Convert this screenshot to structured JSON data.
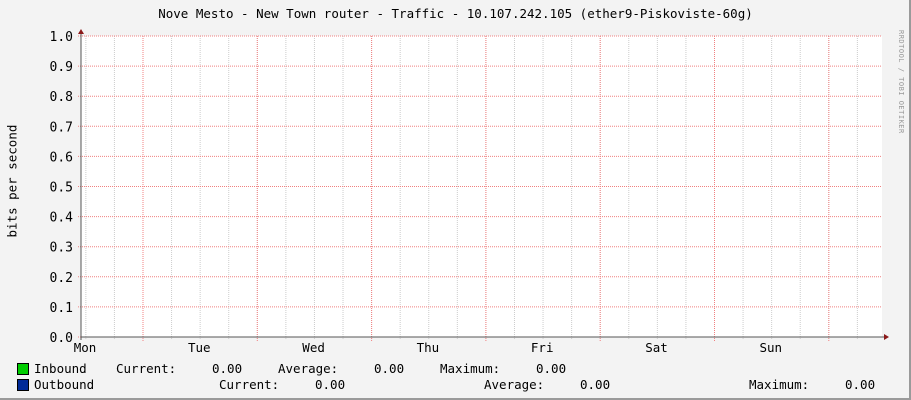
{
  "chart_data": {
    "type": "line",
    "title": "Nove Mesto - New Town router - Traffic - 10.107.242.105 (ether9-Piskoviste-60g)",
    "ylabel": "bits per second",
    "xlabel": "",
    "ylim": [
      0,
      1.0
    ],
    "yticks": [
      "0.0",
      "0.1",
      "0.2",
      "0.3",
      "0.4",
      "0.5",
      "0.6",
      "0.7",
      "0.8",
      "0.9",
      "1.0"
    ],
    "xticks": [
      "Mon",
      "Tue",
      "Wed",
      "Thu",
      "Fri",
      "Sat",
      "Sun"
    ],
    "grid": true,
    "series": [
      {
        "name": "Inbound",
        "color": "#00cc00",
        "values": [],
        "current": "0.00",
        "average": "0.00",
        "maximum": "0.00"
      },
      {
        "name": "Outbound",
        "color": "#002a97",
        "values": [],
        "current": "0.00",
        "average": "0.00",
        "maximum": "0.00"
      }
    ]
  },
  "watermark": "RRDTOOL / TOBI OETIKER",
  "legend": {
    "current_label": "Current:",
    "average_label": "Average:",
    "maximum_label": "Maximum:"
  }
}
